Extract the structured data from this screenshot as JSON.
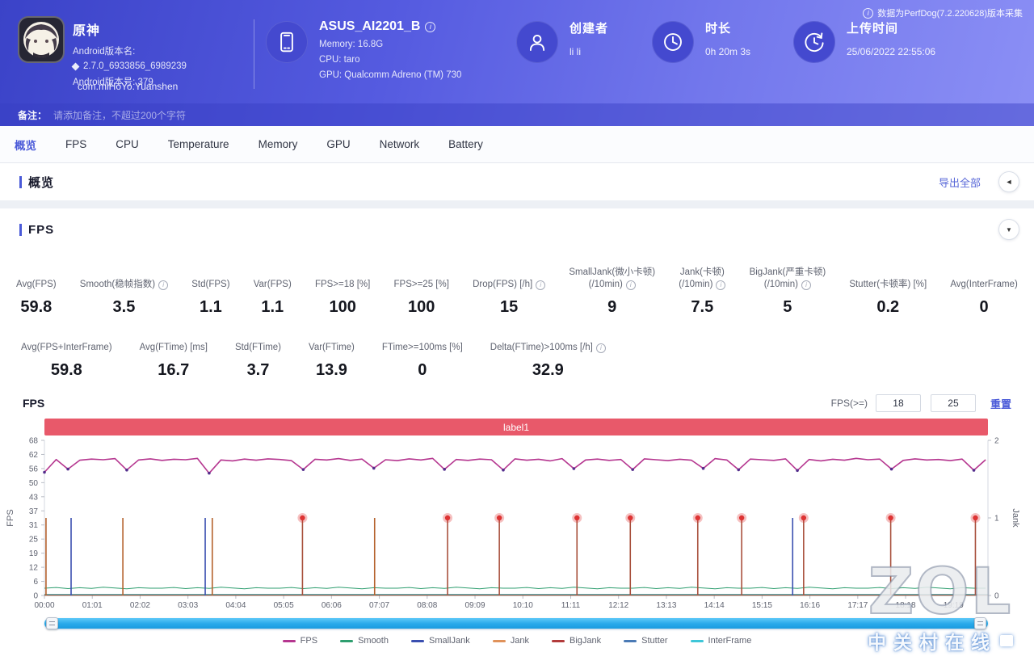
{
  "header": {
    "app": {
      "name": "原神",
      "version_label": "Android版本名:",
      "version_value": "2.7.0_6933856_6989239",
      "build_line": "Android版本号: 379",
      "package": "com.miHoYo.Yuanshen"
    },
    "device": {
      "name": "ASUS_AI2201_B",
      "memory": "Memory: 16.8G",
      "cpu": "CPU: taro",
      "gpu": "GPU: Qualcomm Adreno (TM) 730"
    },
    "creator": {
      "label": "创建者",
      "value": "li li"
    },
    "duration": {
      "label": "时长",
      "value": "0h 20m 3s"
    },
    "upload": {
      "label": "上传时间",
      "value": "25/06/2022 22:55:06"
    },
    "version_note": "数据为PerfDog(7.2.220628)版本采集",
    "remark_label": "备注：",
    "remark_placeholder": "请添加备注，不超过200个字符"
  },
  "tabs": [
    "概览",
    "FPS",
    "CPU",
    "Temperature",
    "Memory",
    "GPU",
    "Network",
    "Battery"
  ],
  "active_tab": "概览",
  "overview": {
    "title": "概览",
    "export_label": "导出全部",
    "collapse_icon": "◄"
  },
  "fps_section": {
    "title": "FPS",
    "collapse_icon": "▼",
    "chart_title": "FPS",
    "threshold_label": "FPS(>=)",
    "threshold1": "18",
    "threshold2": "25",
    "reset_label": "重置",
    "region_label": "label1",
    "metrics_row1": [
      {
        "label": "Avg(FPS)",
        "value": "59.8"
      },
      {
        "label": "Smooth(稳帧指数)",
        "info": true,
        "value": "3.5"
      },
      {
        "label": "Std(FPS)",
        "value": "1.1"
      },
      {
        "label": "Var(FPS)",
        "value": "1.1"
      },
      {
        "label": "FPS>=18 [%]",
        "value": "100"
      },
      {
        "label": "FPS>=25 [%]",
        "value": "100"
      },
      {
        "label": "Drop(FPS) [/h]",
        "info": true,
        "value": "15"
      },
      {
        "label": "SmallJank(微小卡顿)",
        "label2": "(/10min)",
        "info": true,
        "value": "9"
      },
      {
        "label": "Jank(卡顿)",
        "label2": "(/10min)",
        "info": true,
        "value": "7.5"
      },
      {
        "label": "BigJank(严重卡顿)",
        "label2": "(/10min)",
        "info": true,
        "value": "5"
      },
      {
        "label": "Stutter(卡顿率) [%]",
        "value": "0.2"
      },
      {
        "label": "Avg(InterFrame)",
        "value": "0"
      }
    ],
    "metrics_row2": [
      {
        "label": "Avg(FPS+InterFrame)",
        "value": "59.8"
      },
      {
        "label": "Avg(FTime) [ms]",
        "value": "16.7"
      },
      {
        "label": "Std(FTime)",
        "value": "3.7"
      },
      {
        "label": "Var(FTime)",
        "value": "13.9"
      },
      {
        "label": "FTime>=100ms [%]",
        "value": "0"
      },
      {
        "label": "Delta(FTime)>100ms [/h]",
        "info": true,
        "value": "32.9"
      }
    ]
  },
  "chart_data": {
    "type": "line",
    "title": "FPS",
    "x_max_seconds": 1203,
    "x_tick_interval_seconds": 61,
    "x_ticks": [
      "00:00",
      "01:01",
      "02:02",
      "03:03",
      "04:04",
      "05:05",
      "06:06",
      "07:07",
      "08:08",
      "09:09",
      "10:10",
      "11:11",
      "12:12",
      "13:13",
      "14:14",
      "15:15",
      "16:16",
      "17:17",
      "18:18",
      "19:19"
    ],
    "left_axis": {
      "label": "FPS",
      "max": 68,
      "ticks": [
        68,
        62,
        56,
        50,
        43,
        37,
        31,
        25,
        19,
        12,
        6,
        0
      ]
    },
    "right_axis": {
      "label": "Jank",
      "max": 2,
      "ticks": [
        2,
        1,
        0
      ]
    },
    "sample_step_seconds": 15,
    "fps_series": [
      54.0,
      59.6,
      55.4,
      59.3,
      59.8,
      59.5,
      60.0,
      55.0,
      59.4,
      59.9,
      59.2,
      59.7,
      59.5,
      60.1,
      53.6,
      59.4,
      59.0,
      59.8,
      59.3,
      59.9,
      59.6,
      59.1,
      55.2,
      59.7,
      59.4,
      60.0,
      59.2,
      59.8,
      55.8,
      59.5,
      59.1,
      59.9,
      59.4,
      60.1,
      55.3,
      59.6,
      59.2,
      59.8,
      59.5,
      55.0,
      59.9,
      59.3,
      59.7,
      59.0,
      60.0,
      55.6,
      59.4,
      59.8,
      59.2,
      59.6,
      55.2,
      59.9,
      59.5,
      59.1,
      59.7,
      59.3,
      55.7,
      60.0,
      59.4,
      55.1,
      59.8,
      59.5,
      59.2,
      59.9,
      54.8,
      59.6,
      59.0,
      59.7,
      59.3,
      60.1,
      59.5,
      59.8,
      55.4,
      59.2,
      59.9,
      59.4,
      59.6,
      59.1,
      59.8,
      54.9,
      59.5
    ],
    "smooth_series": [
      3.2,
      3.5,
      3.0,
      3.4,
      3.1,
      3.6,
      3.3,
      2.9,
      3.4,
      3.2,
      3.2,
      3.5,
      3.0,
      3.4,
      3.1,
      3.6,
      3.3,
      2.9,
      3.4,
      3.2,
      3.2,
      3.5,
      3.0,
      3.4,
      3.1,
      3.6,
      3.3,
      2.9,
      3.4,
      3.2,
      3.2,
      3.5,
      3.0,
      3.4,
      3.1,
      3.6,
      3.3,
      2.9,
      3.4,
      3.2,
      3.2,
      3.5,
      3.0,
      3.4,
      3.1,
      3.6,
      3.3,
      2.9,
      3.4,
      3.2,
      3.2,
      3.5,
      3.0,
      3.4,
      3.1,
      3.6,
      3.3,
      2.9,
      3.4,
      3.2,
      3.2,
      3.5,
      3.0,
      3.4,
      3.1,
      3.6,
      3.3,
      2.9,
      3.4,
      3.2,
      3.2,
      3.5,
      3.0,
      3.4,
      3.1,
      3.6,
      3.3,
      2.9,
      3.4,
      3.2,
      3.2
    ],
    "jank_events": [
      {
        "t": 2,
        "type": "jank"
      },
      {
        "t": 34,
        "type": "smalljank"
      },
      {
        "t": 100,
        "type": "jank"
      },
      {
        "t": 205,
        "type": "smalljank"
      },
      {
        "t": 214,
        "type": "jank"
      },
      {
        "t": 329,
        "type": "bigjank"
      },
      {
        "t": 421,
        "type": "jank"
      },
      {
        "t": 514,
        "type": "bigjank"
      },
      {
        "t": 580,
        "type": "bigjank"
      },
      {
        "t": 679,
        "type": "bigjank"
      },
      {
        "t": 747,
        "type": "bigjank"
      },
      {
        "t": 833,
        "type": "bigjank"
      },
      {
        "t": 889,
        "type": "bigjank"
      },
      {
        "t": 954,
        "type": "smalljank"
      },
      {
        "t": 968,
        "type": "bigjank"
      },
      {
        "t": 1079,
        "type": "bigjank"
      },
      {
        "t": 1187,
        "type": "bigjank"
      }
    ],
    "series_colors": {
      "fps": "#b5368f",
      "fps_dip_marker": "#532d8c",
      "smooth": "#2e9e6f",
      "jank": "#b5622d",
      "smalljank": "#3a4fb0",
      "bigjank": "#a8503c",
      "bigjank_dot": "#dd3333"
    },
    "legend": [
      {
        "label": "FPS",
        "color": "#b5368f"
      },
      {
        "label": "Smooth",
        "color": "#2e9e6f"
      },
      {
        "label": "SmallJank",
        "color": "#3a4fb0"
      },
      {
        "label": "Jank",
        "color": "#e0925a"
      },
      {
        "label": "BigJank",
        "color": "#b23b3b"
      },
      {
        "label": "Stutter",
        "color": "#4a7ab5"
      },
      {
        "label": "InterFrame",
        "color": "#3ec6d8"
      }
    ]
  },
  "watermark": {
    "line1": "ZOL",
    "line2": "中关村在线"
  }
}
